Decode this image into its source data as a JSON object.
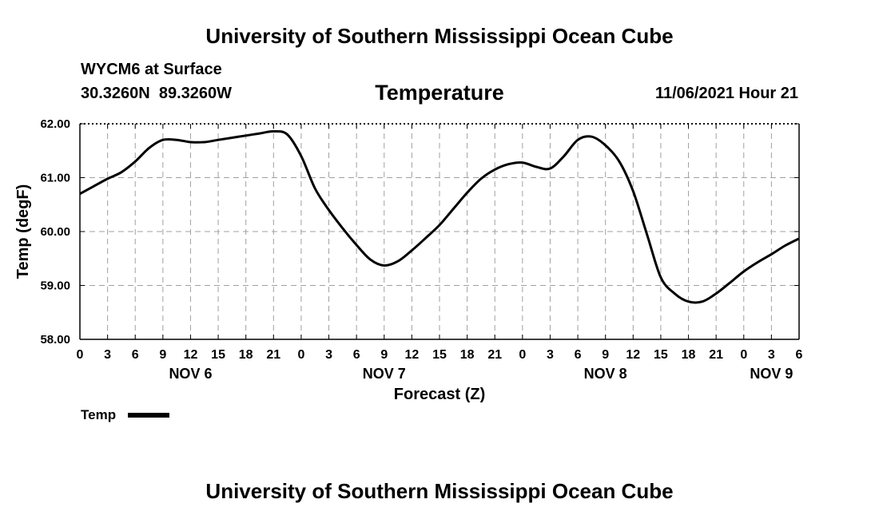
{
  "page_title": "University of Southern Mississippi Ocean Cube",
  "footer_title": "University of Southern Mississippi Ocean Cube",
  "station": {
    "name": "WYCM6 at Surface",
    "coords": "30.3260N  89.3260W"
  },
  "run_label": "11/06/2021 Hour 21",
  "chart_data": {
    "type": "line",
    "title": "Temperature",
    "xlabel": "Forecast (Z)",
    "ylabel": "Temp (degF)",
    "ylim": [
      58.0,
      62.0
    ],
    "xlim": [
      0,
      78
    ],
    "y_ticks": [
      "58.00",
      "59.00",
      "60.00",
      "61.00",
      "62.00"
    ],
    "y_tick_values": [
      58,
      59,
      60,
      61,
      62
    ],
    "x_tick_labels": [
      "0",
      "3",
      "6",
      "9",
      "12",
      "15",
      "18",
      "21",
      "0",
      "3",
      "6",
      "9",
      "12",
      "15",
      "18",
      "21",
      "0",
      "3",
      "6",
      "9",
      "12",
      "15",
      "18",
      "21",
      "0",
      "3",
      "6"
    ],
    "date_labels": [
      {
        "label": "NOV 6",
        "hour": 12
      },
      {
        "label": "NOV 7",
        "hour": 33
      },
      {
        "label": "NOV 8",
        "hour": 57
      },
      {
        "label": "NOV 9",
        "hour": 75
      }
    ],
    "grid": true,
    "legend": [
      {
        "name": "Temp",
        "color": "#000000"
      }
    ],
    "series": [
      {
        "name": "Temp",
        "x": [
          0,
          1.5,
          3,
          4.5,
          6,
          7.5,
          9,
          10.5,
          12,
          13.5,
          15,
          16.5,
          18,
          19.5,
          21,
          22.5,
          24,
          25.5,
          27,
          28.5,
          30,
          31.5,
          33,
          34.5,
          36,
          37.5,
          39,
          40.5,
          42,
          43.5,
          45,
          46.5,
          48,
          49.5,
          51,
          52.5,
          54,
          55.5,
          57,
          58.5,
          60,
          61.5,
          63,
          64.5,
          66,
          67.5,
          69,
          70.5,
          72,
          73.5,
          75,
          76.5,
          78
        ],
        "y": [
          60.7,
          60.84,
          60.98,
          61.1,
          61.3,
          61.55,
          61.7,
          61.7,
          61.66,
          61.66,
          61.7,
          61.74,
          61.78,
          61.82,
          61.86,
          61.8,
          61.4,
          60.8,
          60.4,
          60.06,
          59.75,
          59.48,
          59.37,
          59.45,
          59.65,
          59.88,
          60.12,
          60.42,
          60.72,
          60.98,
          61.15,
          61.25,
          61.28,
          61.2,
          61.17,
          61.4,
          61.7,
          61.76,
          61.6,
          61.3,
          60.75,
          59.95,
          59.15,
          58.85,
          58.7,
          58.7,
          58.85,
          59.05,
          59.26,
          59.43,
          59.58,
          59.74,
          59.87
        ]
      }
    ]
  }
}
